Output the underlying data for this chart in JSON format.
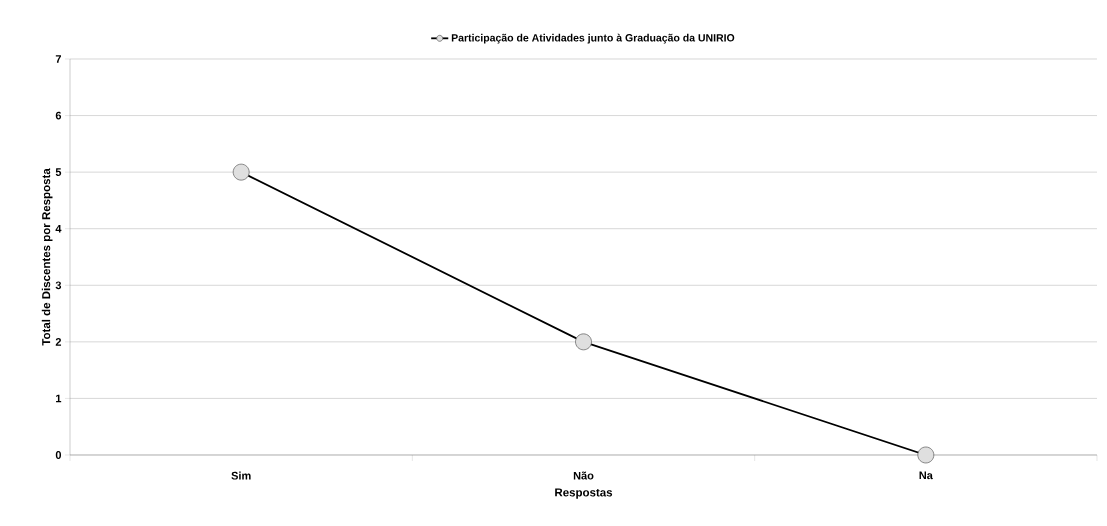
{
  "chart_data": {
    "type": "line",
    "xlabel": "Respostas",
    "ylabel": "Total de Discentes por Resposta",
    "categories": [
      "Sim",
      "Não",
      "Na"
    ],
    "series": [
      {
        "name": "Participação de Atividades junto à Graduação da UNIRIO",
        "color": "#000000",
        "values": [
          5,
          2,
          0
        ]
      }
    ],
    "ylim": [
      0,
      7
    ],
    "yticks": [
      0,
      1,
      2,
      3,
      4,
      5,
      6,
      7
    ],
    "grid": "y",
    "legend": "top",
    "marker": "circle",
    "line_style": "solid"
  }
}
